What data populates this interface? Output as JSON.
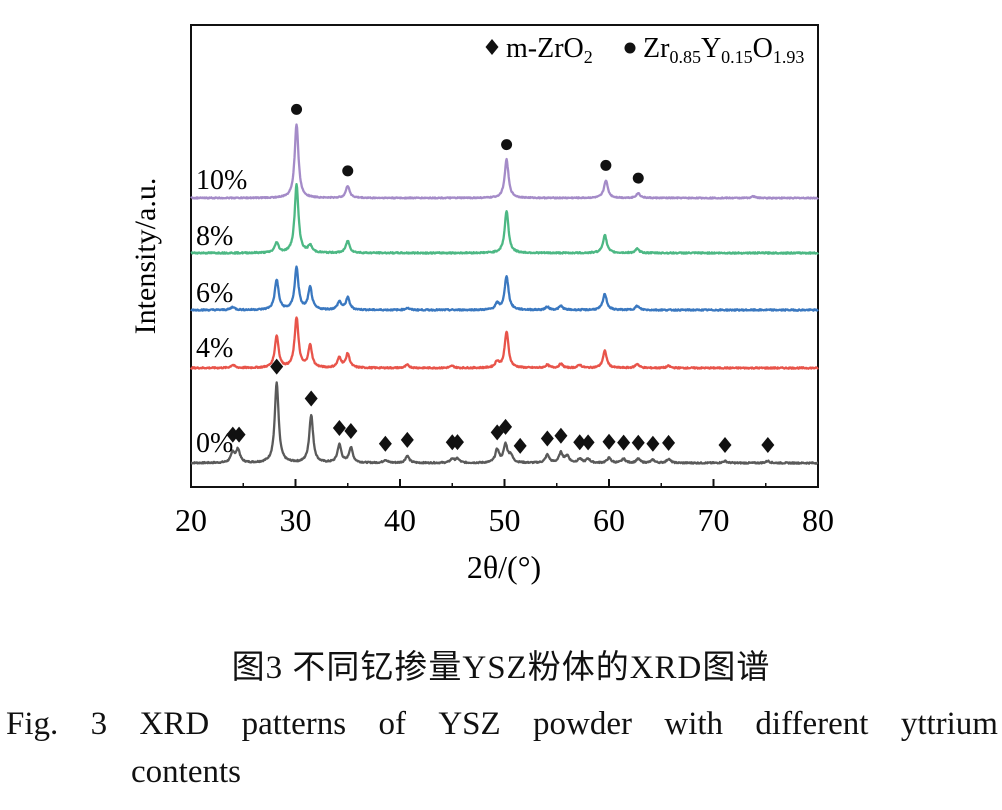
{
  "chart_data": {
    "type": "line",
    "title": "",
    "xlabel": "2θ/(°)",
    "ylabel": "Intensity/a.u.",
    "xlim": [
      20,
      80
    ],
    "xticks": [
      "20",
      "30",
      "40",
      "50",
      "60",
      "70",
      "80"
    ],
    "legend": {
      "placement": "top-right",
      "entries": [
        {
          "marker": "diamond",
          "label": "m-ZrO",
          "sub": "2"
        },
        {
          "marker": "circle",
          "parts": [
            {
              "t": "Zr"
            },
            {
              "t": "0.85",
              "sub": true
            },
            {
              "t": "Y"
            },
            {
              "t": "0.15",
              "sub": true
            },
            {
              "t": "O"
            },
            {
              "t": "1.93",
              "sub": true
            }
          ]
        }
      ]
    },
    "series": [
      {
        "name": "0%",
        "color": "#5a5a5a",
        "peaks": [
          [
            24.0,
            0.1
          ],
          [
            24.5,
            0.13
          ],
          [
            28.2,
            0.8
          ],
          [
            31.5,
            0.48
          ],
          [
            34.2,
            0.18
          ],
          [
            35.3,
            0.15
          ],
          [
            38.6,
            0.03
          ],
          [
            40.7,
            0.07
          ],
          [
            45.0,
            0.04
          ],
          [
            45.5,
            0.04
          ],
          [
            49.3,
            0.13
          ],
          [
            50.1,
            0.18
          ],
          [
            50.6,
            0.07
          ],
          [
            54.1,
            0.08
          ],
          [
            55.4,
            0.1
          ],
          [
            56.0,
            0.07
          ],
          [
            57.2,
            0.04
          ],
          [
            58.0,
            0.04
          ],
          [
            60.0,
            0.05
          ],
          [
            61.4,
            0.04
          ],
          [
            62.8,
            0.04
          ],
          [
            64.2,
            0.03
          ],
          [
            65.7,
            0.04
          ],
          [
            71.1,
            0.02
          ],
          [
            75.2,
            0.02
          ]
        ]
      },
      {
        "name": "4%",
        "color": "#e8544a",
        "peaks": [
          [
            24.0,
            0.03
          ],
          [
            28.2,
            0.32
          ],
          [
            30.1,
            0.5
          ],
          [
            31.4,
            0.22
          ],
          [
            34.2,
            0.1
          ],
          [
            35.0,
            0.14
          ],
          [
            40.7,
            0.03
          ],
          [
            45.0,
            0.02
          ],
          [
            49.3,
            0.06
          ],
          [
            50.2,
            0.36
          ],
          [
            54.1,
            0.03
          ],
          [
            55.4,
            0.04
          ],
          [
            57.2,
            0.03
          ],
          [
            59.6,
            0.17
          ],
          [
            62.7,
            0.04
          ],
          [
            65.7,
            0.02
          ]
        ]
      },
      {
        "name": "6%",
        "color": "#3a78c0",
        "peaks": [
          [
            24.0,
            0.03
          ],
          [
            28.2,
            0.3
          ],
          [
            30.1,
            0.42
          ],
          [
            31.4,
            0.22
          ],
          [
            34.2,
            0.08
          ],
          [
            35.0,
            0.12
          ],
          [
            40.7,
            0.02
          ],
          [
            49.3,
            0.06
          ],
          [
            50.2,
            0.34
          ],
          [
            54.1,
            0.03
          ],
          [
            55.4,
            0.04
          ],
          [
            59.6,
            0.16
          ],
          [
            62.7,
            0.04
          ]
        ]
      },
      {
        "name": "8%",
        "color": "#4db884",
        "peaks": [
          [
            28.2,
            0.1
          ],
          [
            30.1,
            0.68
          ],
          [
            31.4,
            0.07
          ],
          [
            35.0,
            0.12
          ],
          [
            50.2,
            0.42
          ],
          [
            59.6,
            0.18
          ],
          [
            62.7,
            0.04
          ]
        ]
      },
      {
        "name": "10%",
        "color": "#a48bc8",
        "peaks": [
          [
            30.1,
            0.92
          ],
          [
            35.0,
            0.15
          ],
          [
            50.2,
            0.48
          ],
          [
            59.7,
            0.22
          ],
          [
            62.8,
            0.06
          ],
          [
            73.8,
            0.02
          ]
        ]
      }
    ],
    "peak_markers": {
      "diamond_series": "0%",
      "diamond_positions": [
        24.0,
        24.6,
        28.2,
        31.5,
        34.2,
        35.3,
        38.6,
        40.7,
        45.0,
        45.5,
        49.3,
        50.1,
        51.5,
        54.1,
        55.4,
        57.2,
        58.0,
        60.0,
        61.4,
        62.8,
        64.2,
        65.7,
        71.1,
        75.2
      ],
      "circle_series": "10%",
      "circle_positions": [
        30.1,
        35.0,
        50.2,
        59.7,
        62.8
      ]
    }
  },
  "caption_cn": "图3  不同钇掺量YSZ粉体的XRD图谱",
  "caption_en": {
    "line1_words": [
      "Fig.",
      "3",
      "XRD",
      "patterns",
      "of",
      "YSZ",
      "powder",
      "with",
      "different",
      "yttrium"
    ],
    "line2": "contents"
  }
}
